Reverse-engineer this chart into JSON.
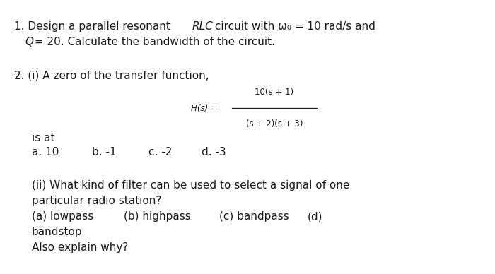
{
  "background_color": "#ffffff",
  "figsize": [
    7.0,
    3.88
  ],
  "dpi": 100,
  "text_color": "#1a1a1a",
  "font_size_main": 11.0,
  "font_size_small": 8.5,
  "font_size_super": 7.0,
  "q1_prefix": "1. Design a parallel resonant ",
  "q1_italic": "RLC",
  "q1_suffix": " circuit with ω₀ = 10 rad/s and",
  "q1_line2_italic": "Q",
  "q1_line2_rest": " = 20. Calculate the bandwidth of the circuit.",
  "q2_header": "2. (i) A zero of the transfer function,",
  "h_label": "H(s) =",
  "numerator": "10(s + 1)",
  "denominator": "(s + 2)(s + 3)",
  "is_at": "is at",
  "opt_a": "a. 10",
  "opt_b": "b. -1",
  "opt_c": "c. -2",
  "opt_d": "d. -3",
  "q2ii_l1": "(ii) What kind of filter can be used to select a signal of one",
  "q2ii_l2": "particular radio station?",
  "q2ii_l3_a": "(a) lowpass",
  "q2ii_l3_b": "(b) highpass",
  "q2ii_l3_c": "(c) bandpass",
  "q2ii_l3_d": "(d)",
  "q2ii_l4": "bandstop",
  "q2ii_l5": "Also explain why?"
}
